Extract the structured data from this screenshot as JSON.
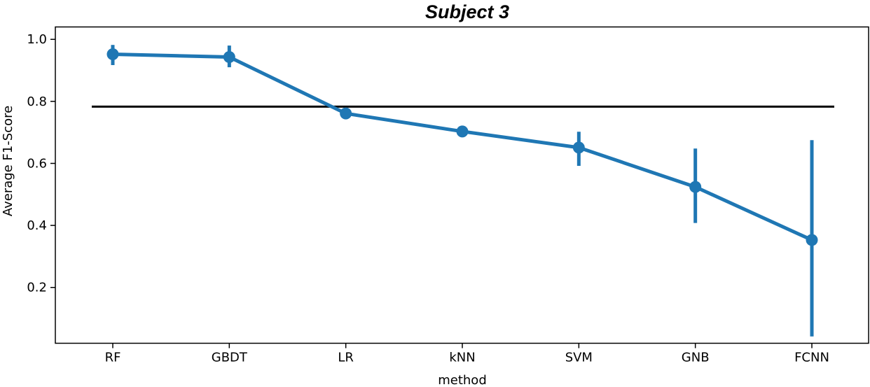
{
  "chart_data": {
    "type": "line",
    "title": "Subject 3",
    "xlabel": "method",
    "ylabel": "Average F1-Score",
    "categories": [
      "RF",
      "GBDT",
      "LR",
      "kNN",
      "SVM",
      "GNB",
      "FCNN"
    ],
    "series": [
      {
        "values": [
          0.952,
          0.943,
          0.761,
          0.703,
          0.651,
          0.524,
          0.353
        ],
        "error_low": [
          0.917,
          0.91,
          0.761,
          0.703,
          0.592,
          0.408,
          0.042
        ],
        "error_high": [
          0.982,
          0.98,
          0.761,
          0.703,
          0.702,
          0.648,
          0.675
        ],
        "color": "#1f77b4"
      }
    ],
    "reference_line": {
      "value": 0.783,
      "color": "#000000"
    },
    "ylim": [
      0.02,
      1.04
    ],
    "yticks": [
      0.2,
      0.4,
      0.6,
      0.8,
      1.0
    ],
    "ytick_labels": [
      "0.2",
      "0.4",
      "0.6",
      "0.8",
      "1.0"
    ],
    "grid": false,
    "legend": "none"
  }
}
